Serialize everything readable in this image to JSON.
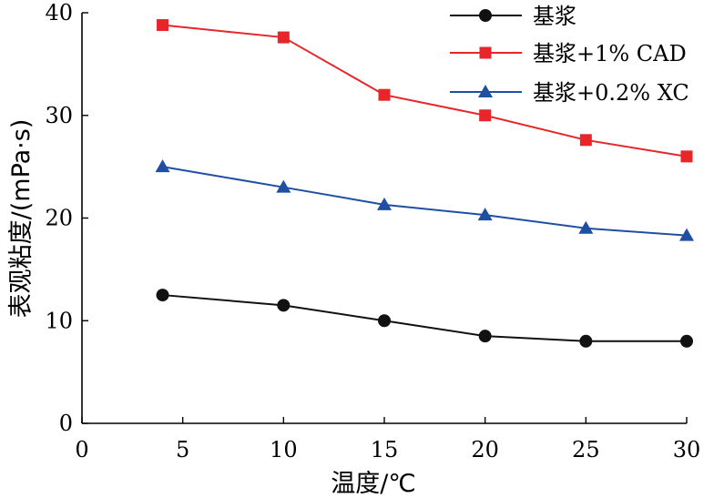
{
  "chart_data": {
    "type": "line",
    "xlabel": "温度/℃",
    "ylabel": "表观粘度/(mPa·s)",
    "xlim": [
      0,
      30
    ],
    "ylim": [
      0,
      40
    ],
    "x_ticks": [
      0,
      5,
      10,
      15,
      20,
      25,
      30
    ],
    "y_ticks": [
      0,
      10,
      20,
      30,
      40
    ],
    "y_tick_labels": [
      "0",
      "10",
      "20",
      "30",
      "40"
    ],
    "legend_position": "top-right",
    "grid": false,
    "x": [
      4,
      10,
      15,
      20,
      25,
      30
    ],
    "series": [
      {
        "name": "基浆",
        "values": [
          12.5,
          11.5,
          10.0,
          8.5,
          8.0,
          8.0
        ],
        "color": "#111111",
        "marker": "circle"
      },
      {
        "name": "基浆+1% CAD",
        "values": [
          38.8,
          37.6,
          32.0,
          30.0,
          27.6,
          26.0
        ],
        "color": "#e8262a",
        "marker": "square"
      },
      {
        "name": "基浆+0.2% XC",
        "values": [
          25.0,
          23.0,
          21.3,
          20.3,
          19.0,
          18.3
        ],
        "color": "#1f4fa3",
        "marker": "triangle"
      }
    ]
  }
}
